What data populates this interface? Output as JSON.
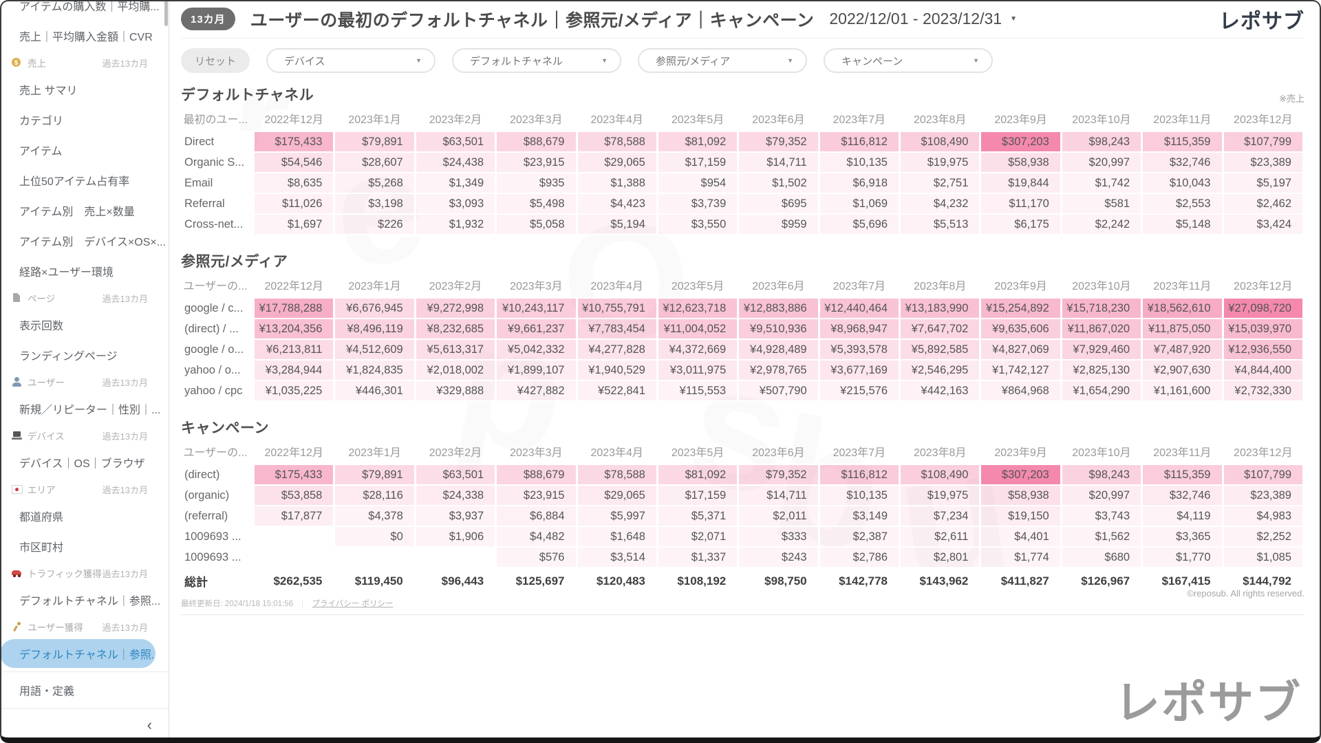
{
  "header": {
    "badge": "13カ月",
    "title": "ユーザーの最初のデフォルトチャネル｜参照元/メディア｜キャンペーン",
    "date_range": "2022/12/01 - 2023/12/31",
    "logo": "レポサブ"
  },
  "filters": {
    "reset_label": "リセット",
    "dropdowns": [
      {
        "key": "device",
        "label": "デバイス"
      },
      {
        "key": "default-channel",
        "label": "デフォルトチャネル"
      },
      {
        "key": "source-medium",
        "label": "参照元/メディア"
      },
      {
        "key": "campaign",
        "label": "キャンペーン"
      }
    ]
  },
  "sidebar": {
    "items": [
      {
        "type": "link",
        "label": "アイテムの購入数｜平均購..."
      },
      {
        "type": "link",
        "label": "売上｜平均購入金額｜CVR"
      },
      {
        "type": "section",
        "icon": "sales-icon",
        "label": "売上",
        "period": "過去13カ月"
      },
      {
        "type": "link",
        "label": "売上 サマリ"
      },
      {
        "type": "link",
        "label": "カテゴリ"
      },
      {
        "type": "link",
        "label": "アイテム"
      },
      {
        "type": "link",
        "label": "上位50アイテム占有率"
      },
      {
        "type": "link",
        "label": "アイテム別　売上×数量"
      },
      {
        "type": "link",
        "label": "アイテム別　デバイス×OS×..."
      },
      {
        "type": "link",
        "label": "経路×ユーザー環境"
      },
      {
        "type": "section",
        "icon": "page-icon",
        "label": "ページ",
        "period": "過去13カ月"
      },
      {
        "type": "link",
        "label": "表示回数"
      },
      {
        "type": "link",
        "label": "ランディングページ"
      },
      {
        "type": "section",
        "icon": "user-icon",
        "label": "ユーザー",
        "period": "過去13カ月"
      },
      {
        "type": "link",
        "label": "新規／リピーター｜性別｜..."
      },
      {
        "type": "section",
        "icon": "device-icon",
        "label": "デバイス",
        "period": "過去13カ月"
      },
      {
        "type": "link",
        "label": "デバイス｜OS｜ブラウザ"
      },
      {
        "type": "section",
        "icon": "area-icon",
        "label": "エリア",
        "period": "過去13カ月"
      },
      {
        "type": "link",
        "label": "都道府県"
      },
      {
        "type": "link",
        "label": "市区町村"
      },
      {
        "type": "section",
        "icon": "traffic-icon",
        "label": "トラフィック獲得",
        "period": "過去13カ月"
      },
      {
        "type": "link",
        "label": "デフォルトチャネル｜参照..."
      },
      {
        "type": "section",
        "icon": "acq-icon",
        "label": "ユーザー獲得",
        "period": "過去13カ月"
      },
      {
        "type": "selected",
        "label": "デフォルトチャネル｜参照..."
      },
      {
        "type": "divider"
      },
      {
        "type": "link",
        "label": "用語・定義"
      },
      {
        "type": "divider"
      },
      {
        "type": "collapse",
        "label": "‹"
      }
    ]
  },
  "months": [
    "2022年12月",
    "2023年1月",
    "2023年2月",
    "2023年3月",
    "2023年4月",
    "2023年5月",
    "2023年6月",
    "2023年7月",
    "2023年8月",
    "2023年9月",
    "2023年10月",
    "2023年11月",
    "2023年12月"
  ],
  "tables": [
    {
      "key": "default-channel",
      "title": "デフォルトチャネル",
      "note": "※売上",
      "row_header": "最初のユー...",
      "currency": "$",
      "rows": [
        {
          "label": "Direct",
          "values": [
            175433,
            79891,
            63501,
            88679,
            78588,
            81092,
            79352,
            116812,
            108490,
            307203,
            98243,
            115359,
            107799
          ]
        },
        {
          "label": "Organic S...",
          "values": [
            54546,
            28607,
            24438,
            23915,
            29065,
            17159,
            14711,
            10135,
            19975,
            58938,
            20997,
            32746,
            23389
          ]
        },
        {
          "label": "Email",
          "values": [
            8635,
            5268,
            1349,
            935,
            1388,
            954,
            1502,
            6918,
            2751,
            19844,
            1742,
            10043,
            5197
          ]
        },
        {
          "label": "Referral",
          "values": [
            11026,
            3198,
            3093,
            5498,
            4423,
            3739,
            695,
            1069,
            4232,
            11170,
            581,
            2553,
            2462
          ]
        },
        {
          "label": "Cross-net...",
          "values": [
            1697,
            226,
            1932,
            5058,
            5194,
            3550,
            959,
            5696,
            5513,
            6175,
            2242,
            5148,
            3424
          ]
        }
      ]
    },
    {
      "key": "source-medium",
      "title": "参照元/メディア",
      "note": "",
      "row_header": "ユーザーの...",
      "currency": "¥",
      "rows": [
        {
          "label": "google / c...",
          "values": [
            17788288,
            6676945,
            9272998,
            10243117,
            10755791,
            12623718,
            12883886,
            12440464,
            13183990,
            15254892,
            15718230,
            18562610,
            27098720
          ]
        },
        {
          "label": "(direct) / ...",
          "values": [
            13204356,
            8496119,
            8232685,
            9661237,
            7783454,
            11004052,
            9510936,
            8968947,
            7647702,
            9635606,
            11867020,
            11875050,
            15039970
          ]
        },
        {
          "label": "google / o...",
          "values": [
            6213811,
            4512609,
            5613317,
            5042332,
            4277828,
            4372669,
            4928489,
            5393578,
            5892585,
            4827069,
            7929460,
            7487920,
            12936550
          ]
        },
        {
          "label": "yahoo / o...",
          "values": [
            3284944,
            1824835,
            2018002,
            1899107,
            1940529,
            3011975,
            2978765,
            3677169,
            2546295,
            1742127,
            2825130,
            2907630,
            4844400
          ]
        },
        {
          "label": "yahoo / cpc",
          "values": [
            1035225,
            446301,
            329888,
            427882,
            522841,
            115553,
            507790,
            215576,
            442163,
            864968,
            1654290,
            1161600,
            2732330
          ]
        }
      ]
    },
    {
      "key": "campaign",
      "title": "キャンペーン",
      "note": "",
      "row_header": "ユーザーの...",
      "currency": "$",
      "rows": [
        {
          "label": "(direct)",
          "values": [
            175433,
            79891,
            63501,
            88679,
            78588,
            81092,
            79352,
            116812,
            108490,
            307203,
            98243,
            115359,
            107799
          ]
        },
        {
          "label": "(organic)",
          "values": [
            53858,
            28116,
            24338,
            23915,
            29065,
            17159,
            14711,
            10135,
            19975,
            58938,
            20997,
            32746,
            23389
          ]
        },
        {
          "label": "(referral)",
          "values": [
            17877,
            4378,
            3937,
            6884,
            5997,
            5371,
            2011,
            3149,
            7234,
            19150,
            3743,
            4119,
            4983
          ]
        },
        {
          "label": "1009693 ...",
          "values": [
            null,
            0,
            1906,
            4482,
            1648,
            2071,
            333,
            2387,
            2611,
            4401,
            1562,
            3365,
            2252
          ]
        },
        {
          "label": "1009693 ...",
          "values": [
            null,
            null,
            null,
            576,
            3514,
            1337,
            243,
            2786,
            2801,
            1774,
            680,
            1770,
            1085
          ]
        }
      ],
      "total": {
        "label": "総計",
        "values": [
          262535,
          119450,
          96443,
          125697,
          120483,
          108192,
          98750,
          142778,
          143962,
          411827,
          126967,
          167415,
          144792
        ]
      }
    }
  ],
  "footer": {
    "last_updated": "最終更新日: 2024/1/18 15:01:56",
    "privacy_link": "プライバシー ポリシー",
    "copyright": "©reposub. All rights reserved.",
    "watermark": "レポサブ"
  },
  "decor_letters": [
    "r",
    "e",
    "p",
    "O",
    "s",
    "u",
    "b"
  ],
  "colors": {
    "heat_base_rgb": [
      240,
      98,
      146
    ],
    "selected_bg": "#aed3ee",
    "selected_text": "#2e86c1",
    "badge_bg": "#6e6e6e"
  }
}
